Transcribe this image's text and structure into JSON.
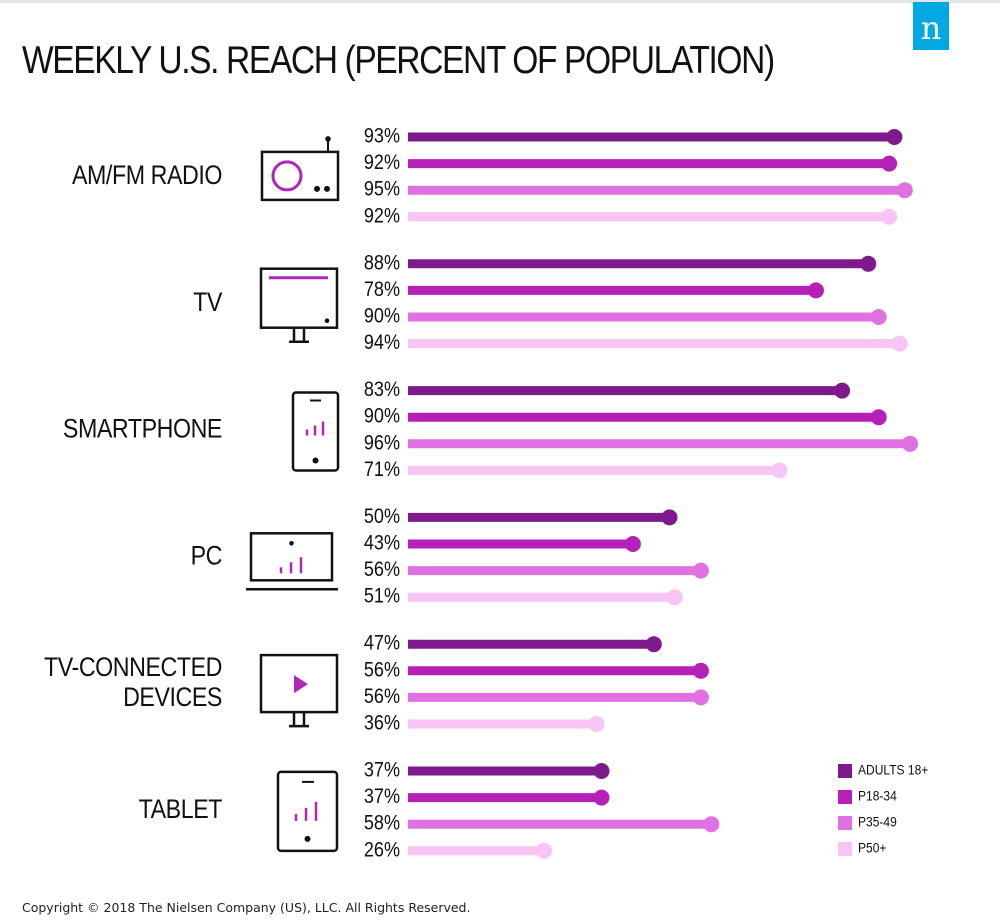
{
  "title": "WEEKLY U.S. REACH (PERCENT OF POPULATION)",
  "logo_letter": "n",
  "copyright": "Copyright © 2018 The Nielsen Company (US), LLC. All Rights Reserved.",
  "colors": {
    "adults_18_plus": "#7f1a8c",
    "p18_34": "#b61fb8",
    "p35_49": "#df71e2",
    "p50_plus": "#f8c4f4",
    "icon_accent": "#b026b8",
    "logo": "#00a9e0"
  },
  "chart_data": {
    "type": "bar",
    "title": "WEEKLY U.S. REACH (PERCENT OF POPULATION)",
    "xlim": [
      0,
      100
    ],
    "grid": false,
    "legend_position": "bottom-right",
    "categories": [
      {
        "label_lines": [
          "AM/FM RADIO"
        ],
        "icon": "radio-icon"
      },
      {
        "label_lines": [
          "TV"
        ],
        "icon": "tv-icon"
      },
      {
        "label_lines": [
          "SMARTPHONE"
        ],
        "icon": "smartphone-icon"
      },
      {
        "label_lines": [
          "PC"
        ],
        "icon": "laptop-icon"
      },
      {
        "label_lines": [
          "TV-CONNECTED",
          "DEVICES"
        ],
        "icon": "connected-tv-icon"
      },
      {
        "label_lines": [
          "TABLET"
        ],
        "icon": "tablet-icon"
      }
    ],
    "series": [
      {
        "name": "ADULTS 18+",
        "color": "#7f1a8c",
        "values": [
          93,
          88,
          83,
          50,
          47,
          37
        ]
      },
      {
        "name": "P18-34",
        "color": "#b61fb8",
        "values": [
          92,
          78,
          90,
          43,
          56,
          37
        ]
      },
      {
        "name": "P35-49",
        "color": "#df71e2",
        "values": [
          95,
          90,
          96,
          56,
          56,
          58
        ]
      },
      {
        "name": "P50+",
        "color": "#f8c4f4",
        "values": [
          92,
          94,
          71,
          51,
          36,
          26
        ]
      }
    ],
    "value_suffix": "%"
  }
}
